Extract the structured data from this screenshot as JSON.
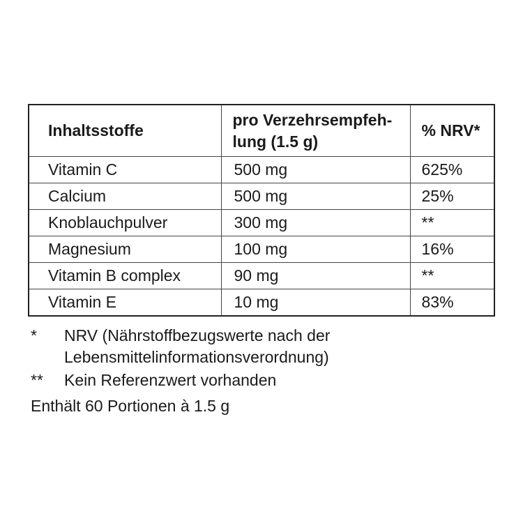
{
  "table": {
    "header": [
      [
        "Inhaltsstoffe"
      ],
      [
        "pro Verzehrsempfeh-",
        "lung (1.5 g)"
      ],
      [
        "% NRV*"
      ]
    ],
    "rows": [
      [
        "Vitamin C",
        "500 mg",
        "625%"
      ],
      [
        "Calcium",
        "500 mg",
        "25%"
      ],
      [
        "Knoblauchpulver",
        "300 mg",
        "**"
      ],
      [
        "Magnesium",
        "100 mg",
        "16%"
      ],
      [
        "Vitamin B complex",
        "90 mg",
        "**"
      ],
      [
        "Vitamin E",
        "10 mg",
        "83%"
      ]
    ]
  },
  "footnotes": [
    {
      "mark": "*",
      "lines": [
        "NRV (Nährstoffbezugswerte nach der",
        "Lebensmittelinformationsverordnung)"
      ]
    },
    {
      "mark": "**",
      "lines": [
        "Kein Referenzwert vorhanden"
      ]
    }
  ],
  "servings": "Enthält 60 Portionen à 1.5 g"
}
